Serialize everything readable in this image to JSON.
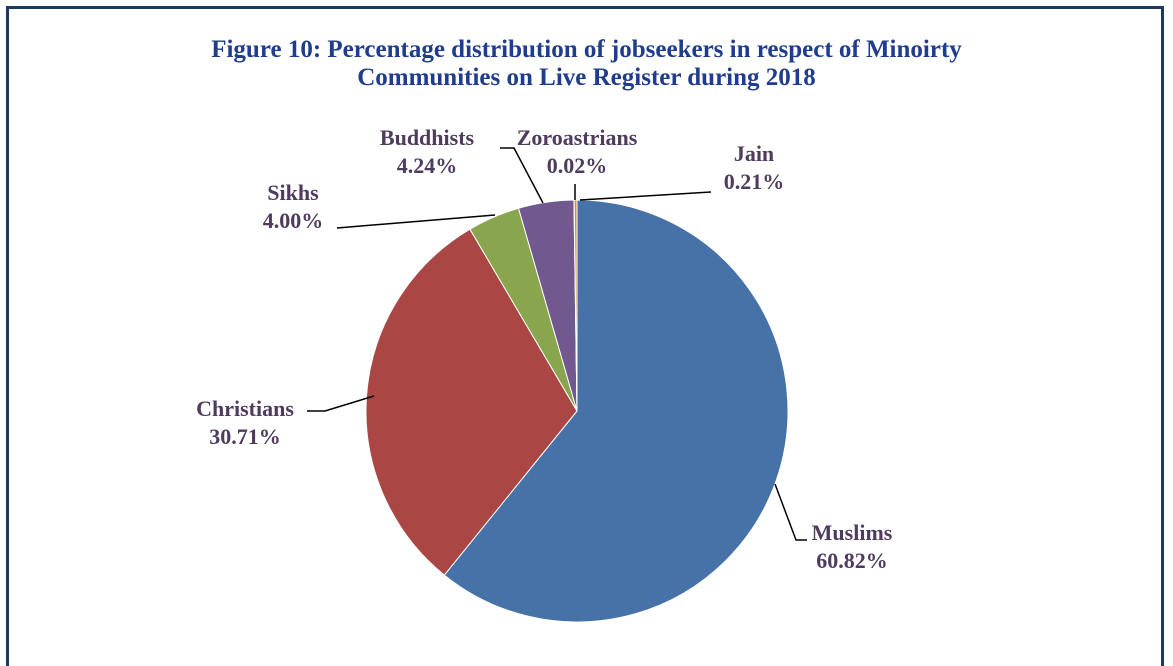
{
  "chart_data": {
    "type": "pie",
    "title": "Figure 10: Percentage distribution of jobseekers in respect of Minoirty Communities on Live Register during 2018",
    "title_lines": [
      "Figure 10: Percentage distribution of jobseekers in respect of Minoirty",
      "Communities on Live Register during 2018"
    ],
    "slices": [
      {
        "label": "Muslims",
        "value": 60.82,
        "value_label": "60.82%",
        "color": "#4672a8"
      },
      {
        "label": "Christians",
        "value": 30.71,
        "value_label": "30.71%",
        "color": "#aa4744"
      },
      {
        "label": "Sikhs",
        "value": 4.0,
        "value_label": "4.00%",
        "color": "#89a54e"
      },
      {
        "label": "Buddhists",
        "value": 4.24,
        "value_label": "4.24%",
        "color": "#71588f"
      },
      {
        "label": "Zoroastrians",
        "value": 0.02,
        "value_label": "0.02%",
        "color": "#4198af"
      },
      {
        "label": "Jain",
        "value": 0.21,
        "value_label": "0.21%",
        "color": "#db843d"
      }
    ],
    "legend": "none",
    "data_labels": "outside with leader lines"
  },
  "colors": {
    "frame_border": "#1f3864",
    "title": "#1f3d8c",
    "label_text": "#4e3b5e"
  }
}
